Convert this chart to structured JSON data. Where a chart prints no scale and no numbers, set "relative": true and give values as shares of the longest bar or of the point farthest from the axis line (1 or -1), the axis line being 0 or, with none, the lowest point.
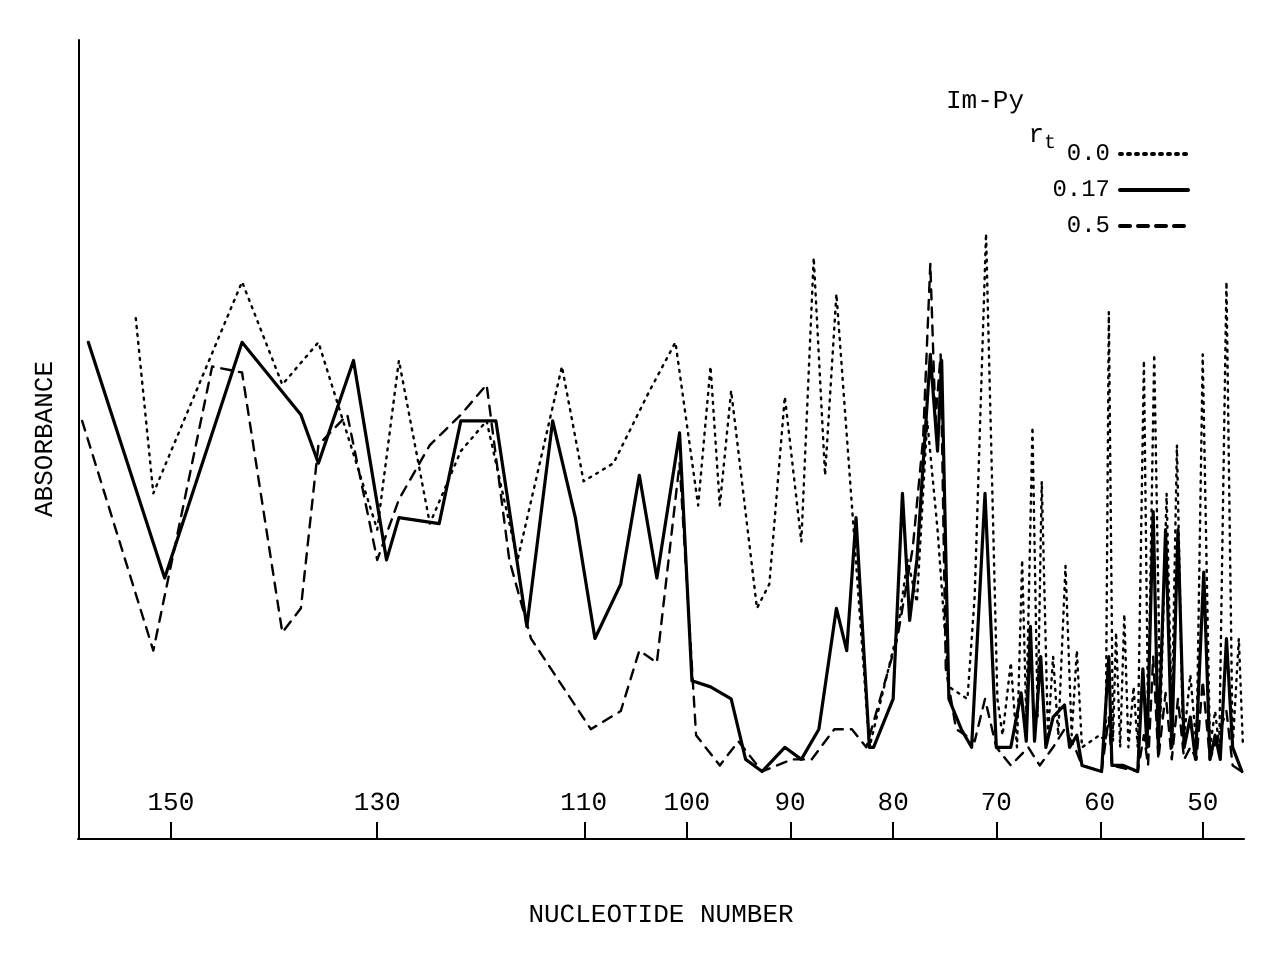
{
  "chart_data": {
    "type": "line",
    "relative": true,
    "xlabel": "NUCLEOTIDE NUMBER",
    "ylabel": "ABSORBANCE",
    "legend_title": "Im-Py",
    "annotations": [
      "r$_{t}$"
    ],
    "legend": "top right",
    "grid": false,
    "marker": "none",
    "xlim": [
      159,
      46
    ],
    "xticks": [
      150,
      130,
      110,
      100,
      90,
      80,
      70,
      60,
      50
    ],
    "series": [
      {
        "name": "0.0",
        "color": "#000000",
        "line_style": "dotted",
        "x": [
          153.4,
          151.7,
          143.1,
          139.2,
          135.7,
          130.0,
          127.9,
          124.9,
          121.9,
          119.4,
          116.4,
          112.1,
          110.0,
          107.1,
          103.6,
          101.1,
          98.9,
          97.7,
          96.8,
          95.7,
          93.2,
          92.0,
          90.5,
          88.9,
          87.7,
          86.6,
          85.5,
          84.0,
          82.3,
          79.6,
          78.6,
          77.7,
          76.7,
          75.7,
          74.6,
          72.8,
          72.1,
          71.0,
          69.9,
          69.4,
          68.6,
          68.0,
          67.5,
          67.1,
          66.5,
          66.0,
          65.6,
          65.0,
          64.5,
          64.0,
          63.3,
          62.7,
          62.2,
          61.7,
          60.0,
          59.4,
          59.1,
          58.7,
          58.4,
          58.0,
          57.6,
          57.2,
          56.7,
          56.3,
          55.7,
          55.3,
          54.7,
          54.1,
          53.5,
          53.0,
          52.5,
          51.9,
          51.2,
          50.6,
          50.0,
          49.3,
          48.8,
          48.4,
          47.7,
          47.1,
          46.5,
          46.1
        ],
        "values": [
          0.86,
          0.57,
          0.92,
          0.75,
          0.82,
          0.51,
          0.79,
          0.52,
          0.64,
          0.69,
          0.46,
          0.78,
          0.59,
          0.62,
          0.74,
          0.82,
          0.55,
          0.78,
          0.55,
          0.74,
          0.38,
          0.42,
          0.73,
          0.49,
          0.96,
          0.6,
          0.9,
          0.55,
          0.15,
          0.34,
          0.46,
          0.39,
          0.69,
          0.51,
          0.25,
          0.23,
          0.4,
          1.0,
          0.23,
          0.17,
          0.29,
          0.15,
          0.46,
          0.2,
          0.68,
          0.2,
          0.59,
          0.17,
          0.3,
          0.17,
          0.45,
          0.17,
          0.31,
          0.15,
          0.17,
          0.16,
          0.87,
          0.16,
          0.34,
          0.15,
          0.37,
          0.15,
          0.25,
          0.15,
          0.79,
          0.2,
          0.8,
          0.2,
          0.57,
          0.2,
          0.65,
          0.15,
          0.27,
          0.15,
          0.8,
          0.15,
          0.21,
          0.15,
          0.92,
          0.15,
          0.33,
          0.15
        ]
      },
      {
        "name": "0.17",
        "color": "#000000",
        "line_style": "solid",
        "x": [
          158.0,
          150.6,
          143.1,
          137.4,
          135.7,
          132.3,
          129.1,
          127.9,
          124.0,
          121.9,
          118.5,
          115.5,
          113.0,
          110.8,
          108.9,
          106.4,
          104.6,
          102.9,
          100.7,
          99.5,
          97.7,
          95.7,
          94.3,
          92.7,
          90.5,
          88.9,
          87.2,
          85.5,
          84.5,
          83.6,
          82.3,
          81.9,
          80.0,
          79.1,
          78.4,
          77.7,
          76.4,
          75.7,
          75.3,
          74.6,
          73.4,
          72.4,
          71.1,
          70.0,
          68.6,
          67.6,
          67.1,
          66.7,
          66.3,
          65.7,
          65.2,
          64.5,
          63.4,
          62.9,
          62.2,
          61.7,
          59.8,
          59.1,
          58.8,
          57.7,
          56.3,
          55.8,
          55.4,
          54.8,
          54.3,
          53.6,
          53.0,
          52.4,
          51.8,
          51.2,
          50.7,
          49.9,
          49.3,
          48.8,
          48.3,
          47.7,
          47.1,
          46.2
        ],
        "values": [
          0.82,
          0.43,
          0.82,
          0.7,
          0.62,
          0.79,
          0.46,
          0.53,
          0.52,
          0.69,
          0.69,
          0.35,
          0.69,
          0.53,
          0.33,
          0.42,
          0.6,
          0.43,
          0.67,
          0.26,
          0.25,
          0.23,
          0.13,
          0.11,
          0.15,
          0.13,
          0.18,
          0.38,
          0.31,
          0.53,
          0.15,
          0.15,
          0.23,
          0.57,
          0.36,
          0.46,
          0.8,
          0.64,
          0.79,
          0.23,
          0.18,
          0.15,
          0.57,
          0.15,
          0.15,
          0.24,
          0.16,
          0.35,
          0.16,
          0.3,
          0.15,
          0.2,
          0.22,
          0.15,
          0.17,
          0.12,
          0.11,
          0.3,
          0.12,
          0.12,
          0.11,
          0.28,
          0.15,
          0.54,
          0.15,
          0.51,
          0.15,
          0.51,
          0.15,
          0.2,
          0.13,
          0.44,
          0.13,
          0.17,
          0.13,
          0.33,
          0.15,
          0.11
        ]
      },
      {
        "name": "0.5",
        "color": "#000000",
        "line_style": "dashed",
        "x": [
          158.6,
          151.7,
          146.0,
          143.1,
          139.2,
          137.4,
          135.7,
          132.9,
          130.0,
          127.9,
          124.9,
          121.9,
          119.4,
          117.2,
          115.1,
          109.3,
          106.4,
          104.6,
          102.9,
          100.7,
          99.1,
          96.8,
          95.0,
          92.7,
          89.8,
          87.9,
          85.7,
          84.0,
          82.6,
          79.6,
          78.1,
          77.1,
          76.4,
          75.9,
          75.4,
          74.9,
          73.9,
          72.1,
          71.1,
          70.0,
          68.6,
          66.9,
          65.8,
          64.5,
          63.4,
          62.4,
          61.7,
          59.8,
          59.1,
          58.8,
          56.3,
          55.7,
          55.3,
          54.8,
          54.3,
          53.6,
          53.0,
          52.4,
          51.8,
          51.2,
          50.6,
          50.0,
          49.3,
          47.7,
          47.1,
          46.2
        ],
        "values": [
          0.69,
          0.31,
          0.78,
          0.77,
          0.34,
          0.38,
          0.65,
          0.7,
          0.46,
          0.56,
          0.65,
          0.7,
          0.75,
          0.46,
          0.33,
          0.18,
          0.21,
          0.31,
          0.29,
          0.62,
          0.17,
          0.12,
          0.16,
          0.11,
          0.13,
          0.13,
          0.18,
          0.18,
          0.15,
          0.33,
          0.48,
          0.66,
          0.95,
          0.69,
          0.8,
          0.28,
          0.18,
          0.16,
          0.23,
          0.15,
          0.12,
          0.15,
          0.12,
          0.15,
          0.18,
          0.15,
          0.12,
          0.11,
          0.2,
          0.12,
          0.11,
          0.17,
          0.12,
          0.3,
          0.13,
          0.24,
          0.13,
          0.23,
          0.13,
          0.15,
          0.13,
          0.26,
          0.13,
          0.21,
          0.12,
          0.11
        ]
      }
    ]
  }
}
